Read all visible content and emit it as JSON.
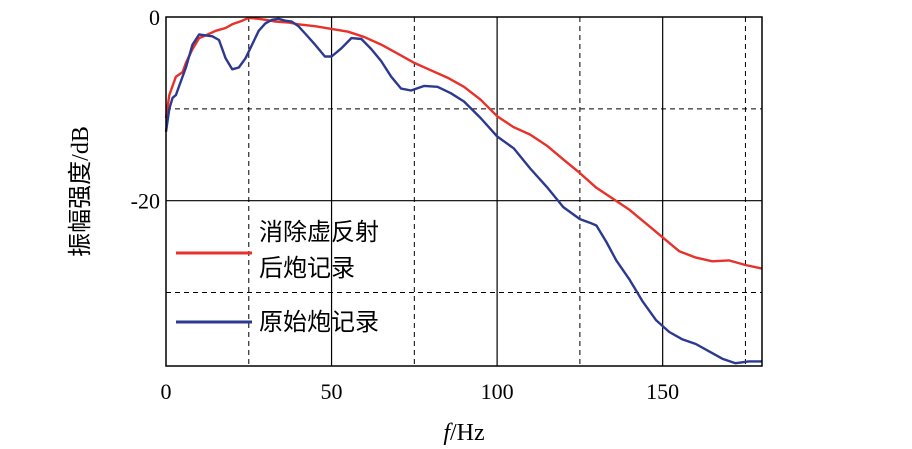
{
  "chart_data": {
    "type": "line",
    "title": "",
    "xlabel_italic": "f",
    "xlabel_rest": "/Hz",
    "ylabel": "振幅强度/dB",
    "xlim": [
      0,
      180
    ],
    "ylim": [
      -38,
      0
    ],
    "x_ticks": [
      0,
      50,
      100,
      150
    ],
    "y_ticks": [
      0,
      -20
    ],
    "legend_position": "left-center",
    "series": [
      {
        "name": "消除虚反射后炮记录",
        "legend_lines": [
          "消除虚反射",
          "后炮记录"
        ],
        "color": "#e8312a",
        "points": [
          [
            0,
            -11
          ],
          [
            1,
            -8.5
          ],
          [
            2,
            -7.5
          ],
          [
            3,
            -6.5
          ],
          [
            5,
            -6
          ],
          [
            6,
            -5
          ],
          [
            8,
            -3.5
          ],
          [
            10,
            -2.3
          ],
          [
            12,
            -2.0
          ],
          [
            15,
            -1.5
          ],
          [
            18,
            -1.2
          ],
          [
            20,
            -0.8
          ],
          [
            23,
            -0.4
          ],
          [
            25,
            -0.1
          ],
          [
            28,
            -0.2
          ],
          [
            30,
            -0.3
          ],
          [
            33,
            -0.5
          ],
          [
            37,
            -0.6
          ],
          [
            40,
            -0.8
          ],
          [
            45,
            -1.0
          ],
          [
            50,
            -1.3
          ],
          [
            55,
            -1.6
          ],
          [
            60,
            -2.2
          ],
          [
            65,
            -3.0
          ],
          [
            70,
            -4.0
          ],
          [
            75,
            -5.0
          ],
          [
            80,
            -5.8
          ],
          [
            85,
            -6.6
          ],
          [
            90,
            -7.6
          ],
          [
            95,
            -9.0
          ],
          [
            100,
            -10.8
          ],
          [
            105,
            -12.0
          ],
          [
            110,
            -12.8
          ],
          [
            115,
            -14.0
          ],
          [
            120,
            -15.5
          ],
          [
            125,
            -17.0
          ],
          [
            130,
            -18.6
          ],
          [
            135,
            -19.8
          ],
          [
            140,
            -21.0
          ],
          [
            145,
            -22.5
          ],
          [
            150,
            -24.0
          ],
          [
            155,
            -25.5
          ],
          [
            160,
            -26.2
          ],
          [
            165,
            -26.6
          ],
          [
            170,
            -26.5
          ],
          [
            175,
            -27.0
          ],
          [
            180,
            -27.4
          ]
        ]
      },
      {
        "name": "原始炮记录",
        "legend_lines": [
          "原始炮记录"
        ],
        "color": "#2b3990",
        "points": [
          [
            0,
            -12.5
          ],
          [
            1,
            -10
          ],
          [
            2,
            -8.8
          ],
          [
            3,
            -8.5
          ],
          [
            4,
            -7.5
          ],
          [
            6,
            -5.5
          ],
          [
            8,
            -3.0
          ],
          [
            10,
            -1.9
          ],
          [
            12,
            -2.0
          ],
          [
            14,
            -2.1
          ],
          [
            16,
            -2.5
          ],
          [
            18,
            -4.5
          ],
          [
            20,
            -5.7
          ],
          [
            22,
            -5.5
          ],
          [
            24,
            -4.5
          ],
          [
            26,
            -3.0
          ],
          [
            28,
            -1.5
          ],
          [
            30,
            -0.7
          ],
          [
            32,
            -0.3
          ],
          [
            34,
            -0.2
          ],
          [
            36,
            -0.4
          ],
          [
            38,
            -0.5
          ],
          [
            40,
            -1.0
          ],
          [
            42,
            -1.8
          ],
          [
            45,
            -3.0
          ],
          [
            48,
            -4.3
          ],
          [
            50,
            -4.3
          ],
          [
            53,
            -3.4
          ],
          [
            56,
            -2.3
          ],
          [
            59,
            -2.4
          ],
          [
            62,
            -3.5
          ],
          [
            65,
            -4.8
          ],
          [
            68,
            -6.5
          ],
          [
            71,
            -7.8
          ],
          [
            74,
            -8.0
          ],
          [
            78,
            -7.5
          ],
          [
            82,
            -7.6
          ],
          [
            86,
            -8.3
          ],
          [
            90,
            -9.2
          ],
          [
            95,
            -11.0
          ],
          [
            100,
            -13.0
          ],
          [
            105,
            -14.3
          ],
          [
            110,
            -16.5
          ],
          [
            115,
            -18.5
          ],
          [
            120,
            -20.7
          ],
          [
            125,
            -22.0
          ],
          [
            128,
            -22.4
          ],
          [
            130,
            -22.7
          ],
          [
            133,
            -24.5
          ],
          [
            136,
            -26.5
          ],
          [
            140,
            -28.6
          ],
          [
            144,
            -31.0
          ],
          [
            148,
            -33.0
          ],
          [
            152,
            -34.3
          ],
          [
            156,
            -35.1
          ],
          [
            160,
            -35.6
          ],
          [
            164,
            -36.4
          ],
          [
            168,
            -37.2
          ],
          [
            172,
            -37.7
          ],
          [
            176,
            -37.5
          ],
          [
            180,
            -37.5
          ]
        ]
      }
    ]
  }
}
